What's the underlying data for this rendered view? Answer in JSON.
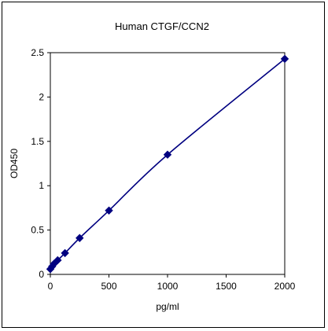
{
  "chart_data": {
    "type": "line",
    "title": "Human CTGF/CCN2",
    "xlabel": "pg/ml",
    "ylabel": "OD450",
    "xlim": [
      0,
      2000
    ],
    "ylim": [
      0,
      2.5
    ],
    "xticks": [
      0,
      500,
      1000,
      1500,
      2000
    ],
    "yticks": [
      0,
      0.5,
      1,
      1.5,
      2,
      2.5
    ],
    "xtick_labels": [
      "0",
      "500",
      "1000",
      "1500",
      "2000"
    ],
    "ytick_labels": [
      "0",
      "0.5",
      "1",
      "1.5",
      "2",
      "2.5"
    ],
    "grid": false,
    "series": [
      {
        "x": [
          0,
          15.6,
          31.2,
          62.5,
          125,
          250,
          500,
          1000,
          2000
        ],
        "y": [
          0.06,
          0.09,
          0.12,
          0.16,
          0.24,
          0.41,
          0.72,
          1.35,
          2.43
        ],
        "marker": "diamond",
        "color": "#000080"
      }
    ]
  }
}
